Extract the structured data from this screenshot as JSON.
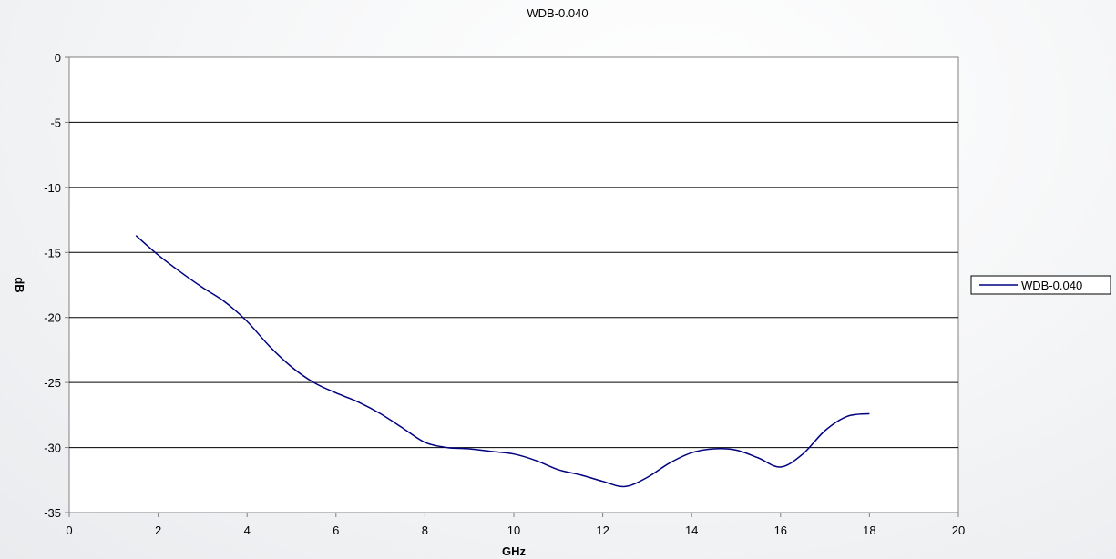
{
  "chart_data": {
    "type": "line",
    "title": "WDB-0.040",
    "xlabel": "GHz",
    "ylabel": "dB",
    "xlim": [
      0,
      20
    ],
    "ylim": [
      -35,
      0
    ],
    "xticks": [
      "0",
      "2",
      "4",
      "6",
      "8",
      "10",
      "12",
      "14",
      "16",
      "18",
      "20"
    ],
    "yticks": [
      "0",
      "-5",
      "-10",
      "-15",
      "-20",
      "-25",
      "-30",
      "-35"
    ],
    "grid": "horizontal",
    "legend_position": "right",
    "series": [
      {
        "name": "WDB-0.040",
        "color": "#000080",
        "x": [
          1.5,
          2.0,
          2.5,
          3.0,
          3.5,
          4.0,
          4.5,
          5.0,
          5.5,
          6.0,
          6.5,
          7.0,
          7.5,
          8.0,
          8.5,
          9.0,
          9.5,
          10.0,
          10.5,
          11.0,
          11.5,
          12.0,
          12.5,
          13.0,
          13.5,
          14.0,
          14.5,
          15.0,
          15.5,
          16.0,
          16.5,
          17.0,
          17.5,
          18.0
        ],
        "y": [
          -13.7,
          -15.2,
          -16.5,
          -17.7,
          -18.8,
          -20.3,
          -22.2,
          -23.8,
          -25.0,
          -25.8,
          -26.5,
          -27.4,
          -28.5,
          -29.6,
          -30.0,
          -30.1,
          -30.3,
          -30.5,
          -31.0,
          -31.7,
          -32.1,
          -32.6,
          -33.0,
          -32.3,
          -31.2,
          -30.4,
          -30.1,
          -30.2,
          -30.8,
          -31.5,
          -30.5,
          -28.7,
          -27.6,
          -27.4
        ]
      }
    ]
  }
}
